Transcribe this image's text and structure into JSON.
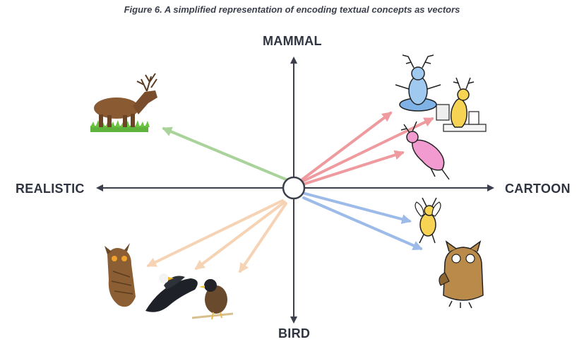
{
  "figure": {
    "caption": "Figure 6. A simplified representation of encoding textual concepts as vectors"
  },
  "axes": {
    "top": "MAMMAL",
    "bottom": "BIRD",
    "left": "REALISTIC",
    "right": "CARTOON"
  },
  "colors": {
    "axis": "#3a3f4b",
    "realistic_mammal": "#a9d39a",
    "cartoon_mammal": "#ee9a9f",
    "cartoon_bird": "#9dbbe9",
    "realistic_bird": "#f6d3b4"
  },
  "images": [
    {
      "name": "realistic-elk-image",
      "group": "realistic_mammal"
    },
    {
      "name": "cartoon-meditating-deer-image",
      "group": "cartoon_mammal"
    },
    {
      "name": "cartoon-reading-deer-image",
      "group": "cartoon_mammal"
    },
    {
      "name": "cartoon-pink-deer-image",
      "group": "cartoon_mammal"
    },
    {
      "name": "cartoon-flying-deer-bird-image",
      "group": "cartoon_bird"
    },
    {
      "name": "cartoon-owl-image",
      "group": "cartoon_bird"
    },
    {
      "name": "realistic-owl-image",
      "group": "realistic_bird"
    },
    {
      "name": "realistic-eagle-image",
      "group": "realistic_bird"
    },
    {
      "name": "realistic-myna-image",
      "group": "realistic_bird"
    }
  ]
}
